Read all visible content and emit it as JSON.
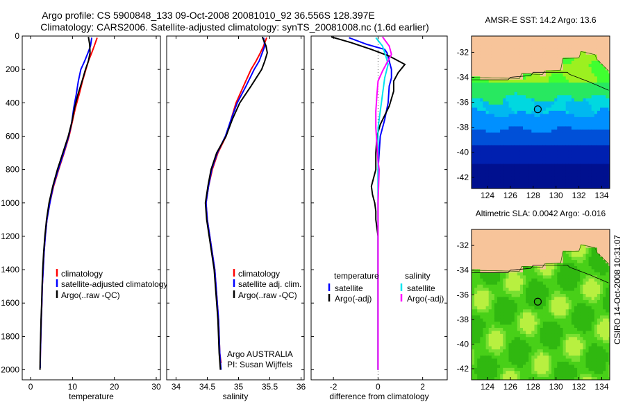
{
  "header": {
    "line1": "Argo profile: CS 5900848_133 09-Oct-2008 20081010_92 36.556S 128.397E",
    "line2": "Climatology: CARS2006. Satellite-adjusted climatology: synTS_20081008.nc (1.6d earlier)"
  },
  "side_label": "CSIRO 14-Oct-2008 10:31:07",
  "colors": {
    "climatology": "#ff0000",
    "satellite": "#0000ff",
    "argo": "#000000",
    "cyan": "#00e5ee",
    "magenta": "#ff00ff",
    "land": "#f7c49a"
  },
  "chart_data": [
    {
      "type": "line",
      "xlabel": "temperature",
      "ylabel": "",
      "xlim": [
        -2,
        31
      ],
      "ylim": [
        2060,
        0
      ],
      "yreverse": true,
      "xticks": [
        0,
        10,
        20,
        30
      ],
      "yticks": [
        0,
        200,
        400,
        600,
        800,
        1000,
        1200,
        1400,
        1600,
        1800,
        2000
      ],
      "legend": {
        "position": "lower-right",
        "entries": [
          "climatology",
          "satellite-adjusted climatology",
          "Argo(..raw -QC)"
        ]
      },
      "series": [
        {
          "name": "climatology",
          "color": "#ff0000",
          "points": [
            [
              15.9,
              10
            ],
            [
              15.2,
              60
            ],
            [
              14.6,
              100
            ],
            [
              13.8,
              150
            ],
            [
              13.2,
              200
            ],
            [
              12.4,
              270
            ],
            [
              11.6,
              350
            ],
            [
              10.7,
              430
            ],
            [
              9.9,
              520
            ],
            [
              9.2,
              600
            ],
            [
              8.0,
              700
            ],
            [
              6.7,
              800
            ],
            [
              5.5,
              900
            ],
            [
              4.6,
              1000
            ],
            [
              3.9,
              1100
            ],
            [
              3.5,
              1200
            ],
            [
              3.2,
              1300
            ],
            [
              3.0,
              1400
            ],
            [
              2.8,
              1500
            ],
            [
              2.7,
              1600
            ],
            [
              2.55,
              1700
            ],
            [
              2.45,
              1800
            ],
            [
              2.35,
              1900
            ],
            [
              2.3,
              1960
            ]
          ]
        },
        {
          "name": "satellite-adjusted climatology",
          "color": "#0000ff",
          "points": [
            [
              14.6,
              10
            ],
            [
              14.3,
              60
            ],
            [
              13.7,
              100
            ],
            [
              12.9,
              150
            ],
            [
              12.0,
              200
            ],
            [
              11.4,
              270
            ],
            [
              10.9,
              350
            ],
            [
              10.3,
              430
            ],
            [
              9.8,
              520
            ],
            [
              9.1,
              600
            ],
            [
              7.9,
              700
            ],
            [
              6.6,
              800
            ],
            [
              5.4,
              900
            ],
            [
              4.6,
              1000
            ],
            [
              3.9,
              1100
            ],
            [
              3.5,
              1200
            ],
            [
              3.2,
              1300
            ],
            [
              3.0,
              1400
            ],
            [
              2.8,
              1500
            ],
            [
              2.7,
              1600
            ],
            [
              2.55,
              1700
            ],
            [
              2.45,
              1800
            ],
            [
              2.35,
              1900
            ],
            [
              2.3,
              1990
            ]
          ]
        },
        {
          "name": "Argo(..raw -QC)",
          "color": "#000000",
          "points": [
            [
              13.8,
              5
            ],
            [
              14.1,
              50
            ],
            [
              14.2,
              100
            ],
            [
              13.8,
              150
            ],
            [
              13.1,
              200
            ],
            [
              12.3,
              270
            ],
            [
              11.3,
              350
            ],
            [
              10.5,
              430
            ],
            [
              9.8,
              520
            ],
            [
              9.0,
              600
            ],
            [
              7.7,
              700
            ],
            [
              6.4,
              800
            ],
            [
              5.3,
              900
            ],
            [
              4.4,
              1000
            ],
            [
              3.8,
              1100
            ],
            [
              3.4,
              1200
            ],
            [
              3.1,
              1300
            ],
            [
              2.9,
              1400
            ],
            [
              2.75,
              1500
            ],
            [
              2.65,
              1600
            ],
            [
              2.5,
              1700
            ],
            [
              2.4,
              1800
            ],
            [
              2.3,
              1900
            ],
            [
              2.25,
              2000
            ]
          ]
        }
      ]
    },
    {
      "type": "line",
      "xlabel": "salinity",
      "ylabel": "",
      "xlim": [
        33.85,
        36.05
      ],
      "ylim": [
        2060,
        0
      ],
      "yreverse": true,
      "xticks": [
        34,
        34.5,
        35,
        35.5,
        36
      ],
      "yticks": [
        0,
        200,
        400,
        600,
        800,
        1000,
        1200,
        1400,
        1600,
        1800,
        2000
      ],
      "legend": {
        "position": "lower-right",
        "entries": [
          "climatology",
          "satellite adj. clim.",
          "Argo(..raw -QC)"
        ]
      },
      "annotation": [
        "Argo AUSTRALIA",
        "PI: Susan Wijffels"
      ],
      "series": [
        {
          "name": "climatology",
          "color": "#ff0000",
          "points": [
            [
              35.45,
              10
            ],
            [
              35.4,
              60
            ],
            [
              35.35,
              100
            ],
            [
              35.28,
              150
            ],
            [
              35.2,
              200
            ],
            [
              35.08,
              300
            ],
            [
              34.96,
              400
            ],
            [
              34.88,
              500
            ],
            [
              34.8,
              600
            ],
            [
              34.67,
              700
            ],
            [
              34.58,
              800
            ],
            [
              34.52,
              900
            ],
            [
              34.48,
              1000
            ],
            [
              34.5,
              1100
            ],
            [
              34.54,
              1200
            ],
            [
              34.58,
              1300
            ],
            [
              34.62,
              1400
            ],
            [
              34.64,
              1500
            ],
            [
              34.66,
              1600
            ],
            [
              34.68,
              1700
            ],
            [
              34.69,
              1800
            ],
            [
              34.7,
              1900
            ],
            [
              34.72,
              1960
            ]
          ]
        },
        {
          "name": "satellite adj. clim.",
          "color": "#0000ff",
          "points": [
            [
              35.4,
              10
            ],
            [
              35.42,
              60
            ],
            [
              35.38,
              100
            ],
            [
              35.33,
              150
            ],
            [
              35.25,
              200
            ],
            [
              35.12,
              300
            ],
            [
              34.98,
              400
            ],
            [
              34.88,
              500
            ],
            [
              34.79,
              600
            ],
            [
              34.66,
              700
            ],
            [
              34.57,
              800
            ],
            [
              34.52,
              900
            ],
            [
              34.48,
              1000
            ],
            [
              34.5,
              1100
            ],
            [
              34.54,
              1200
            ],
            [
              34.58,
              1300
            ],
            [
              34.62,
              1400
            ],
            [
              34.64,
              1500
            ],
            [
              34.66,
              1600
            ],
            [
              34.68,
              1700
            ],
            [
              34.69,
              1800
            ],
            [
              34.7,
              1900
            ],
            [
              34.72,
              2000
            ]
          ]
        },
        {
          "name": "Argo(..raw -QC)",
          "color": "#000000",
          "points": [
            [
              35.38,
              5
            ],
            [
              35.44,
              60
            ],
            [
              35.46,
              100
            ],
            [
              35.42,
              150
            ],
            [
              35.37,
              200
            ],
            [
              35.2,
              300
            ],
            [
              35.02,
              400
            ],
            [
              34.9,
              500
            ],
            [
              34.8,
              600
            ],
            [
              34.65,
              700
            ],
            [
              34.56,
              800
            ],
            [
              34.51,
              900
            ],
            [
              34.47,
              1000
            ],
            [
              34.49,
              1100
            ],
            [
              34.53,
              1200
            ],
            [
              34.57,
              1300
            ],
            [
              34.61,
              1400
            ],
            [
              34.63,
              1500
            ],
            [
              34.65,
              1600
            ],
            [
              34.67,
              1700
            ],
            [
              34.68,
              1800
            ],
            [
              34.69,
              1900
            ],
            [
              34.71,
              2000
            ]
          ]
        }
      ]
    },
    {
      "type": "line",
      "xlabel": "difference from climatology",
      "ylabel": "",
      "xlim": [
        -3,
        3.1
      ],
      "ylim": [
        2060,
        0
      ],
      "yreverse": true,
      "xticks": [
        -2,
        0,
        2
      ],
      "yticks": [
        0,
        200,
        400,
        600,
        800,
        1000,
        1200,
        1400,
        1600,
        1800,
        2000
      ],
      "zero_line": true,
      "legend": {
        "position": "lower",
        "groups": [
          {
            "title": "temperature",
            "entries": [
              "satellite",
              "Argo(-adj)"
            ]
          },
          {
            "title": "salinity",
            "entries": [
              "satellite",
              "Argo(-adj)"
            ]
          }
        ]
      },
      "series": [
        {
          "name": "temperature satellite",
          "color": "#0000ff",
          "points": [
            [
              -1.3,
              10
            ],
            [
              -0.5,
              50
            ],
            [
              0.3,
              80
            ],
            [
              0.4,
              100
            ],
            [
              0.5,
              150
            ],
            [
              0.6,
              200
            ],
            [
              0.6,
              250
            ],
            [
              0.5,
              300
            ],
            [
              0.45,
              400
            ],
            [
              0.3,
              500
            ],
            [
              0.1,
              600
            ],
            [
              0.05,
              700
            ],
            [
              0.0,
              800
            ],
            [
              0.0,
              1000
            ],
            [
              0.0,
              1200
            ],
            [
              0.0,
              1600
            ],
            [
              0.0,
              2000
            ]
          ]
        },
        {
          "name": "temperature Argo(-adj)",
          "color": "#000000",
          "points": [
            [
              -2.1,
              5
            ],
            [
              -1.2,
              40
            ],
            [
              -0.3,
              80
            ],
            [
              0.5,
              120
            ],
            [
              1.2,
              170
            ],
            [
              0.9,
              220
            ],
            [
              0.7,
              270
            ],
            [
              0.7,
              330
            ],
            [
              0.5,
              420
            ],
            [
              0.1,
              530
            ],
            [
              -0.05,
              600
            ],
            [
              -0.1,
              700
            ],
            [
              -0.1,
              800
            ],
            [
              -0.2,
              850
            ],
            [
              -0.3,
              900
            ],
            [
              -0.25,
              950
            ],
            [
              -0.15,
              1000
            ],
            [
              -0.1,
              1050
            ],
            [
              -0.1,
              1100
            ],
            [
              -0.05,
              1150
            ],
            [
              0.0,
              1200
            ],
            [
              0.0,
              1600
            ],
            [
              0.0,
              2000
            ]
          ]
        },
        {
          "name": "salinity satellite",
          "color": "#00e5ee",
          "points": [
            [
              -0.1,
              10
            ],
            [
              0.2,
              60
            ],
            [
              0.35,
              120
            ],
            [
              0.45,
              170
            ],
            [
              0.3,
              250
            ],
            [
              0.2,
              350
            ],
            [
              0.1,
              450
            ],
            [
              0.0,
              550
            ],
            [
              0.0,
              800
            ],
            [
              0.0,
              1200
            ],
            [
              0.0,
              2000
            ]
          ]
        },
        {
          "name": "salinity Argo(-adj)",
          "color": "#ff00ff",
          "points": [
            [
              0.2,
              5
            ],
            [
              0.5,
              60
            ],
            [
              0.6,
              110
            ],
            [
              0.4,
              160
            ],
            [
              0.2,
              210
            ],
            [
              0.0,
              270
            ],
            [
              -0.05,
              350
            ],
            [
              -0.1,
              450
            ],
            [
              -0.1,
              550
            ],
            [
              -0.05,
              650
            ],
            [
              0.0,
              750
            ],
            [
              0.05,
              800
            ],
            [
              0.0,
              1000
            ],
            [
              0.0,
              1500
            ],
            [
              0.0,
              2000
            ]
          ]
        }
      ]
    },
    {
      "type": "heatmap",
      "title": "AMSR-E SST: 14.2 Argo: 13.6",
      "xlim": [
        122.6,
        134.7
      ],
      "ylim": [
        -42.9,
        -30.7
      ],
      "xticks": [
        124,
        126,
        128,
        130,
        132,
        134
      ],
      "yticks": [
        -32,
        -34,
        -36,
        -38,
        -40,
        -42
      ],
      "marker": {
        "lon": 128.4,
        "lat": -36.56
      },
      "field": "sst"
    },
    {
      "type": "heatmap",
      "title": "Altimetric SLA: 0.0042 Argo: -0.016",
      "xlim": [
        122.6,
        134.7
      ],
      "ylim": [
        -42.9,
        -30.7
      ],
      "xticks": [
        124,
        126,
        128,
        130,
        132,
        134
      ],
      "yticks": [
        -32,
        -34,
        -36,
        -38,
        -40,
        -42
      ],
      "marker": {
        "lon": 128.4,
        "lat": -36.56
      },
      "field": "sla"
    }
  ]
}
